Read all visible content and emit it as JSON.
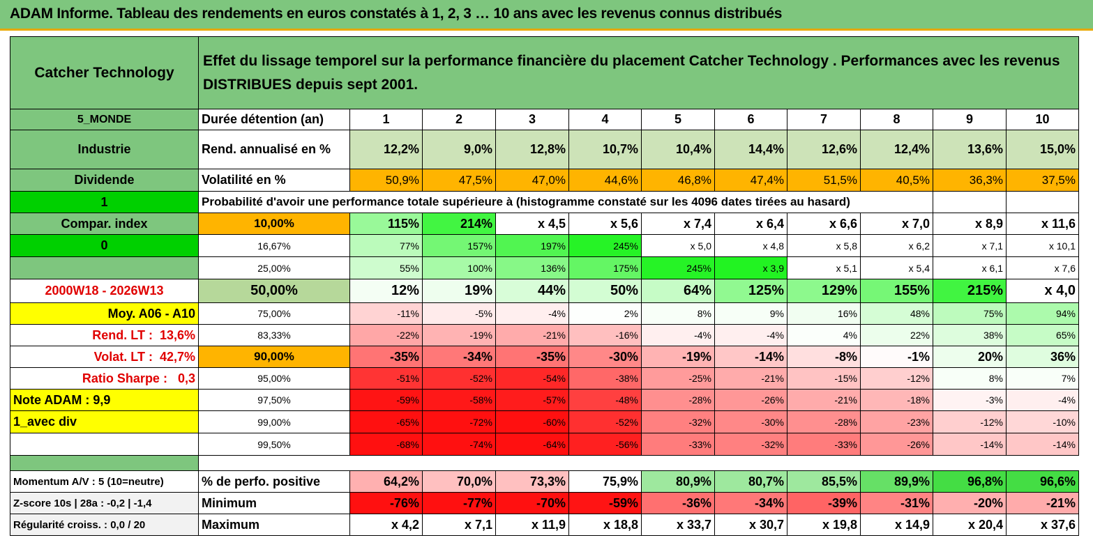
{
  "title": "ADAM Informe. Tableau des rendements en euros constatés à 1, 2, 3 … 10 ans avec les revenus connus distribués",
  "header": {
    "fund_name": "Catcher Technology",
    "description_line1": "Effet du lissage temporel sur la performance financière du placement Catcher Technology . Performances avec les revenus",
    "description_line2": "DISTRIBUES depuis sept 2001."
  },
  "colors": {
    "green_header": "#7ec67e",
    "light_green": "#cde3b8",
    "bright_green": "#00d000",
    "orange": "#ffb400",
    "yellow": "#ffff00",
    "red_text": "#e00000"
  },
  "durations": {
    "label": "Durée détention (an)",
    "years": [
      "1",
      "2",
      "3",
      "4",
      "5",
      "6",
      "7",
      "8",
      "9",
      "10"
    ]
  },
  "returns": {
    "label": "Rend. annualisé en %",
    "values": [
      "12,2%",
      "9,0%",
      "12,8%",
      "10,7%",
      "10,4%",
      "14,4%",
      "12,6%",
      "12,4%",
      "13,6%",
      "15,0%"
    ]
  },
  "volatility": {
    "label": "Volatilité en %",
    "values": [
      "50,9%",
      "47,5%",
      "47,0%",
      "44,6%",
      "46,8%",
      "47,4%",
      "51,5%",
      "40,5%",
      "36,3%",
      "37,5%"
    ]
  },
  "probability_caption": "Probabilité d'avoir une performance totale supérieure à (histogramme constaté sur les 4096 dates tirées au hasard)",
  "side": {
    "region": "5_MONDE",
    "sector": "Industrie",
    "income": "Dividende",
    "flag1": "1",
    "compar_index": "Compar. index",
    "flag0": "0",
    "period": "2000W18 - 2026W13",
    "moy": "Moy. A06 - A10",
    "rend_lt_label": "Rend. LT :",
    "rend_lt_value": "13,6%",
    "volat_lt_label": "Volat. LT :",
    "volat_lt_value": "42,7%",
    "sharpe_label": "Ratio Sharpe :",
    "sharpe_value": "0,3",
    "note": "Note ADAM : 9,9",
    "mode": "1_avec div"
  },
  "percentile_rows": [
    {
      "pct": "10,00%",
      "values": [
        "115%",
        "214%",
        "x 4,5",
        "x 5,6",
        "x 7,4",
        "x 6,4",
        "x 6,6",
        "x 7,0",
        "x 8,9",
        "x 11,6"
      ]
    },
    {
      "pct": "16,67%",
      "values": [
        "77%",
        "157%",
        "197%",
        "245%",
        "x 5,0",
        "x 4,8",
        "x 5,8",
        "x 6,2",
        "x 7,1",
        "x 10,1"
      ]
    },
    {
      "pct": "25,00%",
      "values": [
        "55%",
        "100%",
        "136%",
        "175%",
        "245%",
        "x 3,9",
        "x 5,1",
        "x 5,4",
        "x 6,1",
        "x 7,6"
      ]
    },
    {
      "pct": "50,00%",
      "values": [
        "12%",
        "19%",
        "44%",
        "50%",
        "64%",
        "125%",
        "129%",
        "155%",
        "215%",
        "x 4,0"
      ]
    },
    {
      "pct": "75,00%",
      "values": [
        "-11%",
        "-5%",
        "-4%",
        "2%",
        "8%",
        "9%",
        "16%",
        "48%",
        "75%",
        "94%"
      ]
    },
    {
      "pct": "83,33%",
      "values": [
        "-22%",
        "-19%",
        "-21%",
        "-16%",
        "-4%",
        "-4%",
        "4%",
        "22%",
        "38%",
        "65%"
      ]
    },
    {
      "pct": "90,00%",
      "values": [
        "-35%",
        "-34%",
        "-35%",
        "-30%",
        "-19%",
        "-14%",
        "-8%",
        "-1%",
        "20%",
        "36%"
      ]
    },
    {
      "pct": "95,00%",
      "values": [
        "-51%",
        "-52%",
        "-54%",
        "-38%",
        "-25%",
        "-21%",
        "-15%",
        "-12%",
        "8%",
        "7%"
      ]
    },
    {
      "pct": "97,50%",
      "values": [
        "-59%",
        "-58%",
        "-57%",
        "-48%",
        "-28%",
        "-26%",
        "-21%",
        "-18%",
        "-3%",
        "-4%"
      ]
    },
    {
      "pct": "99,00%",
      "values": [
        "-65%",
        "-72%",
        "-60%",
        "-52%",
        "-32%",
        "-30%",
        "-28%",
        "-23%",
        "-12%",
        "-10%"
      ]
    },
    {
      "pct": "99,50%",
      "values": [
        "-68%",
        "-74%",
        "-64%",
        "-56%",
        "-33%",
        "-32%",
        "-33%",
        "-26%",
        "-14%",
        "-14%"
      ]
    }
  ],
  "bottom": {
    "momentum": "Momentum A/V : 5 (10=neutre)",
    "zscore": "Z-score 10s | 28a : -0,2 | -1,4",
    "regularite": "Régularité croiss. : 0,0 / 20",
    "positive": {
      "label": "% de perfo. positive",
      "values": [
        "64,2%",
        "70,0%",
        "73,3%",
        "75,9%",
        "80,9%",
        "80,7%",
        "85,5%",
        "89,9%",
        "96,8%",
        "96,6%"
      ]
    },
    "minimum": {
      "label": "Minimum",
      "values": [
        "-76%",
        "-77%",
        "-70%",
        "-59%",
        "-36%",
        "-34%",
        "-39%",
        "-31%",
        "-20%",
        "-21%"
      ]
    },
    "maximum": {
      "label": "Maximum",
      "values": [
        "x 4,2",
        "x 7,1",
        "x 11,9",
        "x 18,8",
        "x 33,7",
        "x 30,7",
        "x 19,8",
        "x 14,9",
        "x 20,4",
        "x 37,6"
      ]
    }
  }
}
